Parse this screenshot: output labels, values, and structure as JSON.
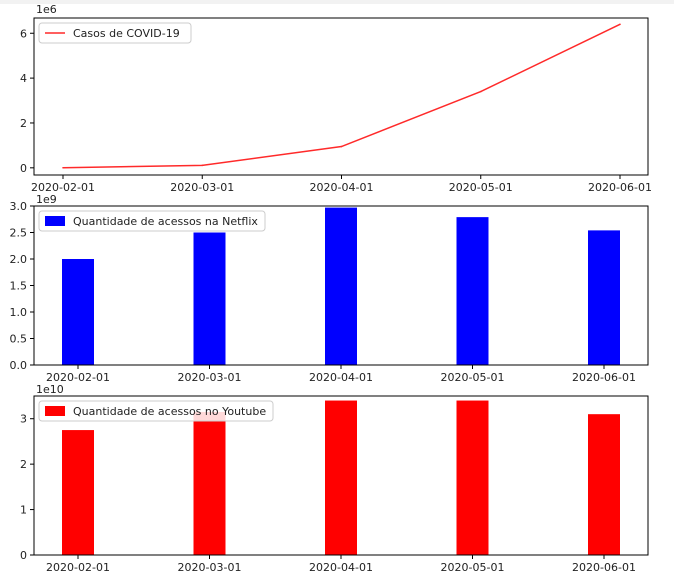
{
  "chart_data": [
    {
      "type": "line",
      "x": [
        "2020-02-01",
        "2020-03-01",
        "2020-04-01",
        "2020-05-01",
        "2020-06-01"
      ],
      "series": [
        {
          "name": "Casos de COVID-19",
          "values": [
            3000,
            110000,
            950000,
            3400000,
            6400000
          ],
          "color": "#ff2a2a"
        }
      ],
      "offset_label": "1e6",
      "yticks": [
        0,
        2,
        4,
        6
      ],
      "ylim": [
        -0.32,
        6.68
      ],
      "scale": 1000000,
      "legend": "top-left",
      "grid": false
    },
    {
      "type": "bar",
      "categories": [
        "2020-02-01",
        "2020-03-01",
        "2020-04-01",
        "2020-05-01",
        "2020-06-01"
      ],
      "series": [
        {
          "name": "Quantidade de acessos na Netflix",
          "values": [
            2000000000,
            2500000000,
            2970000000,
            2790000000,
            2540000000
          ],
          "color": "#0000ff"
        }
      ],
      "offset_label": "1e9",
      "yticks": [
        "0.0",
        "0.5",
        "1.0",
        "1.5",
        "2.0",
        "2.5",
        "3.0"
      ],
      "ylim": [
        0,
        3.0
      ],
      "scale": 1000000000,
      "legend": "top-left",
      "grid": false
    },
    {
      "type": "bar",
      "categories": [
        "2020-02-01",
        "2020-03-01",
        "2020-04-01",
        "2020-05-01",
        "2020-06-01"
      ],
      "series": [
        {
          "name": "Quantidade de acessos no Youtube",
          "values": [
            27500000000,
            31500000000,
            34000000000,
            34000000000,
            31000000000
          ],
          "color": "#ff0000"
        }
      ],
      "offset_label": "1e10",
      "yticks": [
        0,
        1,
        2,
        3
      ],
      "ylim": [
        0,
        3.5
      ],
      "scale": 10000000000,
      "legend": "top-left",
      "grid": false
    }
  ]
}
